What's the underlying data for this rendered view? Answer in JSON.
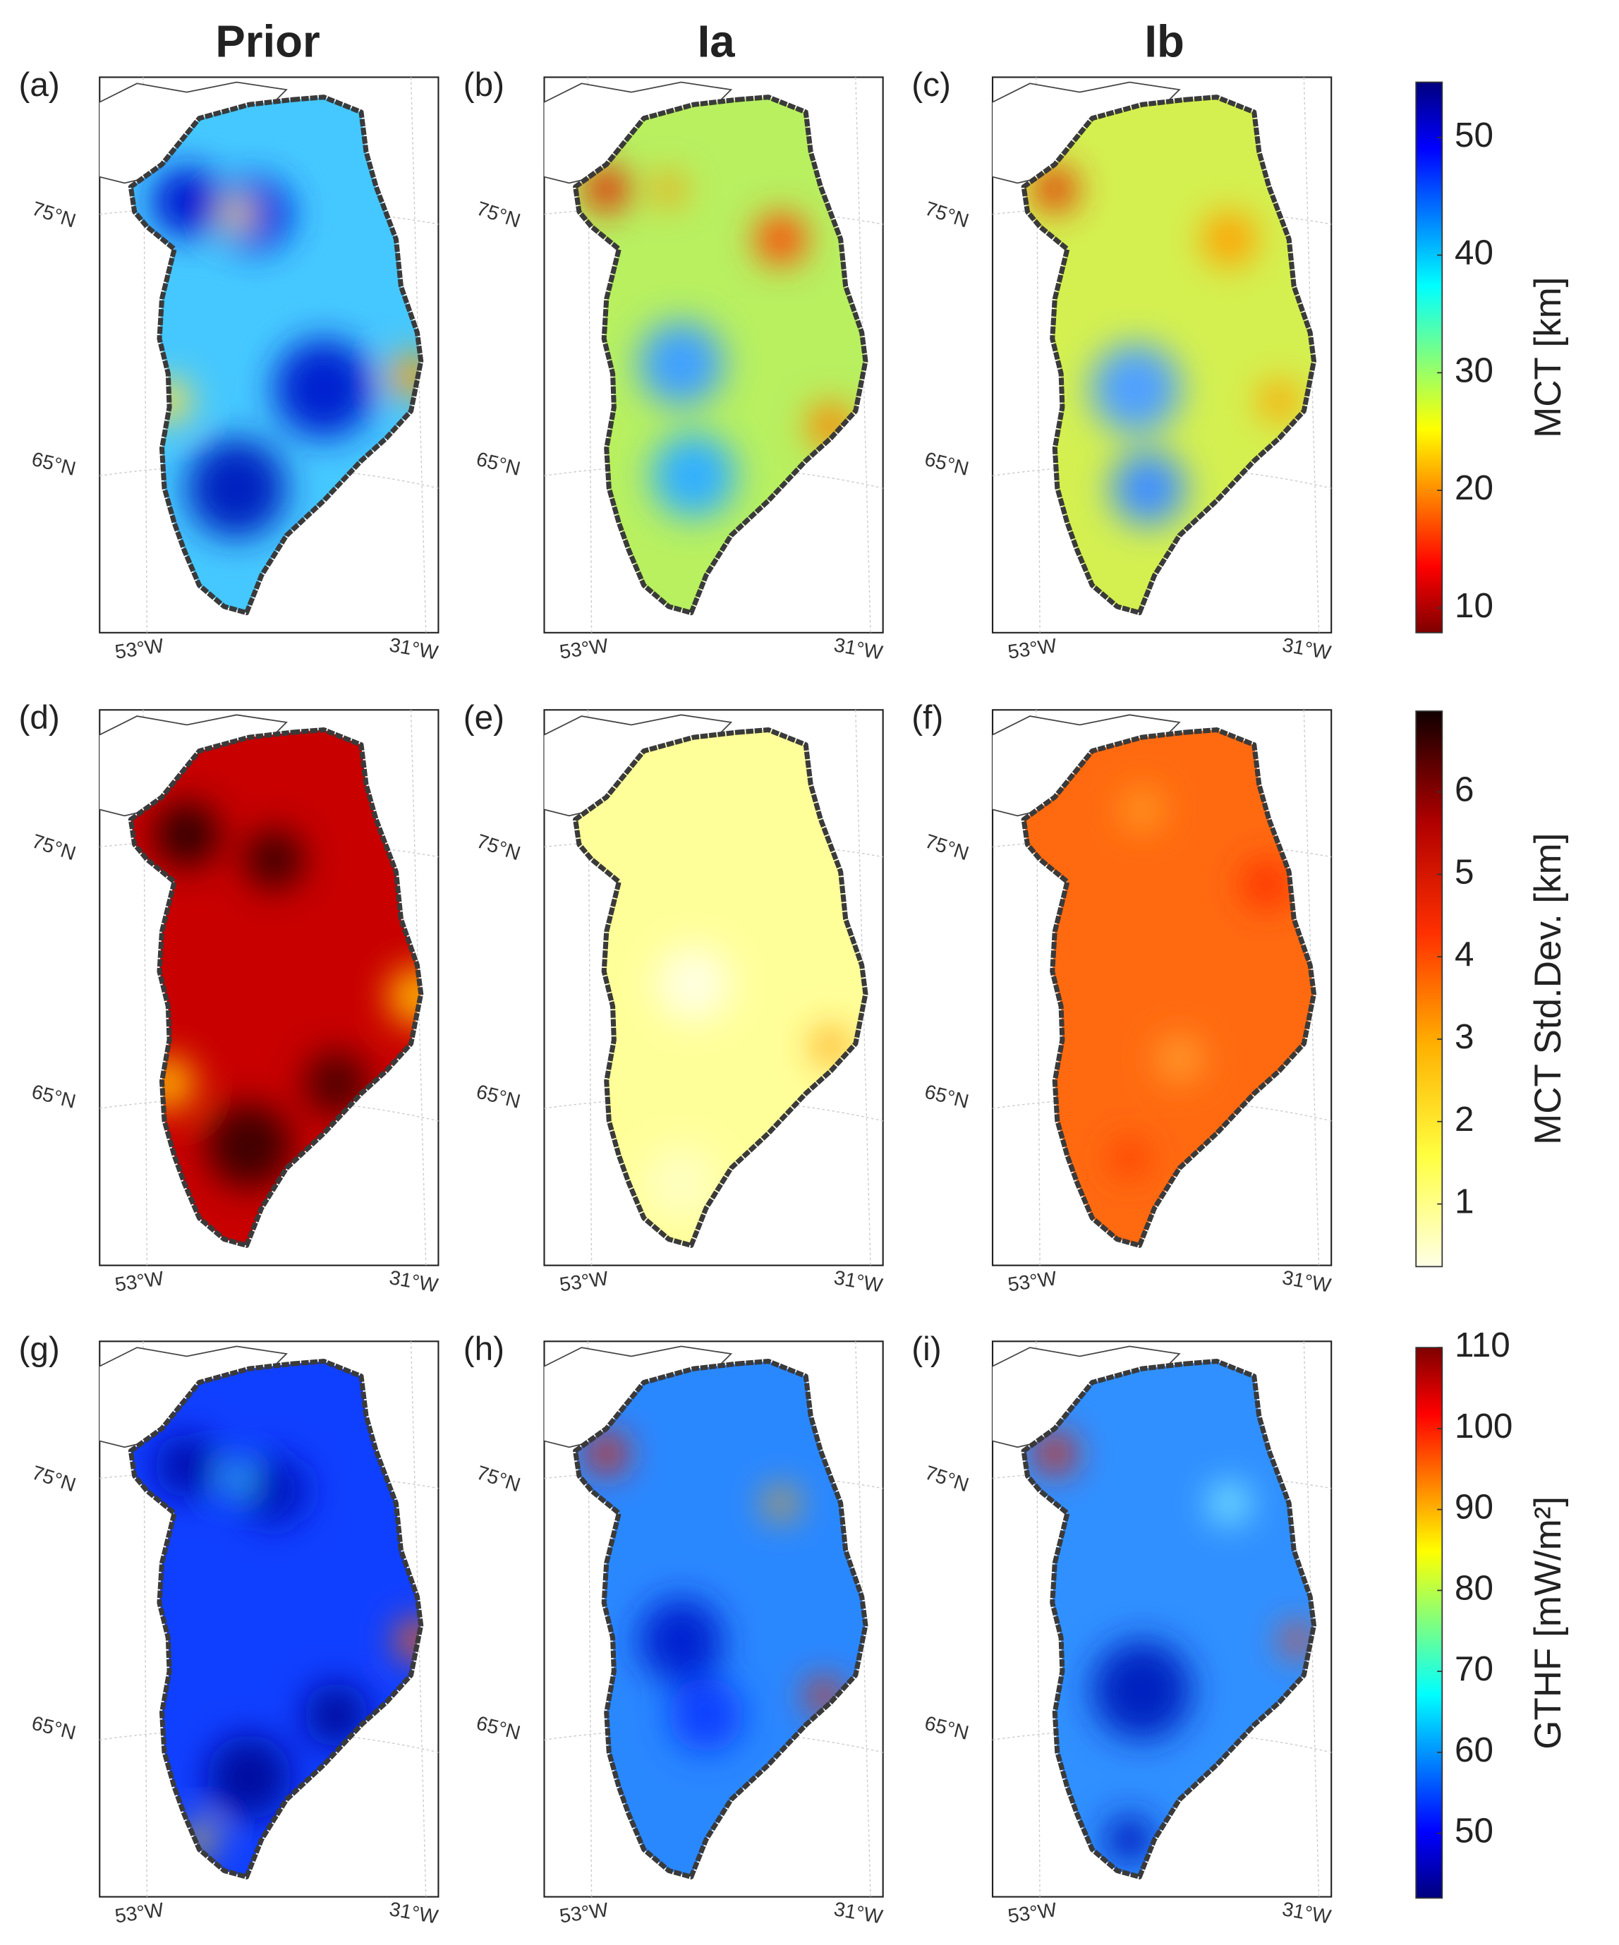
{
  "column_titles": [
    "Prior",
    "Ia",
    "Ib"
  ],
  "panels": [
    {
      "label": "(a)"
    },
    {
      "label": "(b)"
    },
    {
      "label": "(c)"
    },
    {
      "label": "(d)"
    },
    {
      "label": "(e)"
    },
    {
      "label": "(f)"
    },
    {
      "label": "(g)"
    },
    {
      "label": "(h)"
    },
    {
      "label": "(i)"
    }
  ],
  "lat_labels": [
    "75°N",
    "65°N"
  ],
  "lon_labels": [
    "53°W",
    "31°W"
  ],
  "colorbars": [
    {
      "label": "MCT [km]",
      "lim": [
        7.9,
        54.7
      ],
      "ticks": [
        10,
        20,
        30,
        40,
        50
      ]
    },
    {
      "label": "MCT Std.Dev. [km]",
      "lim": [
        0.24,
        6.98
      ],
      "ticks": [
        1,
        2,
        3,
        4,
        5,
        6
      ]
    },
    {
      "label": "GTHF [mW/m²]",
      "lim": [
        42,
        110
      ],
      "ticks": [
        50,
        60,
        70,
        80,
        90,
        100,
        110
      ]
    }
  ]
}
